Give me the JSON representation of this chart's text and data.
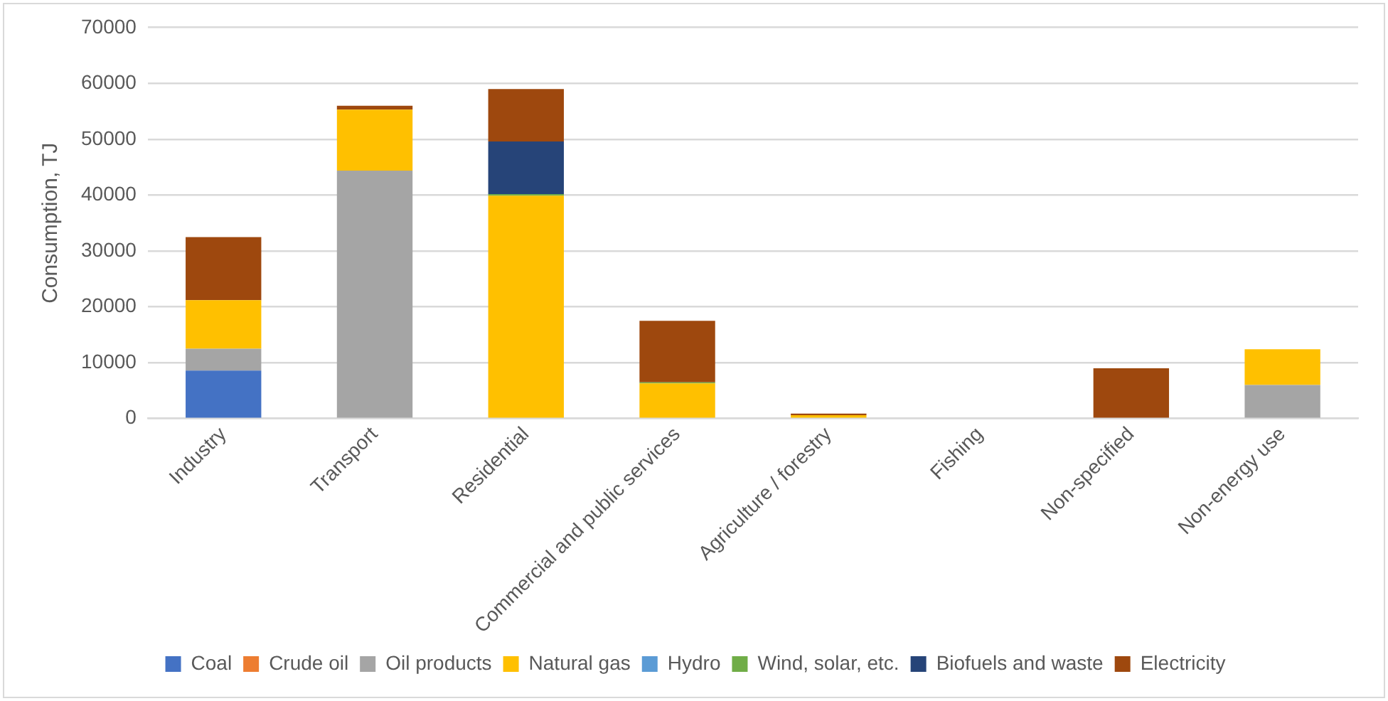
{
  "chart_data": {
    "type": "bar",
    "stacked": true,
    "ylabel": "Consumption, TJ",
    "categories": [
      "Industry",
      "Transport",
      "Residential",
      "Commercial and public services",
      "Agriculture / forestry",
      "Fishing",
      "Non-specified",
      "Non-energy use"
    ],
    "series": [
      {
        "name": "Coal",
        "color": "#4472c4",
        "values": [
          8600,
          0,
          0,
          0,
          0,
          0,
          0,
          0
        ]
      },
      {
        "name": "Crude oil",
        "color": "#ed7d31",
        "values": [
          0,
          0,
          0,
          0,
          0,
          0,
          0,
          0
        ]
      },
      {
        "name": "Oil products",
        "color": "#a5a5a5",
        "values": [
          3900,
          44400,
          0,
          0,
          0,
          0,
          0,
          6000
        ]
      },
      {
        "name": "Natural gas",
        "color": "#ffc000",
        "values": [
          8700,
          10900,
          39900,
          6300,
          600,
          0,
          0,
          6400
        ]
      },
      {
        "name": "Hydro",
        "color": "#5b9bd5",
        "values": [
          0,
          0,
          0,
          0,
          0,
          0,
          0,
          0
        ]
      },
      {
        "name": "Wind, solar, etc.",
        "color": "#70ad47",
        "values": [
          0,
          0,
          300,
          200,
          0,
          0,
          0,
          0
        ]
      },
      {
        "name": "Biofuels and waste",
        "color": "#264478",
        "values": [
          0,
          0,
          9400,
          0,
          0,
          0,
          0,
          0
        ]
      },
      {
        "name": "Electricity",
        "color": "#9e480e",
        "values": [
          11300,
          700,
          9400,
          11000,
          300,
          0,
          9000,
          0
        ]
      }
    ],
    "ylim": [
      0,
      70000
    ],
    "yticks": [
      0,
      10000,
      20000,
      30000,
      40000,
      50000,
      60000,
      70000
    ],
    "grid": "y",
    "legend": "bottom"
  }
}
